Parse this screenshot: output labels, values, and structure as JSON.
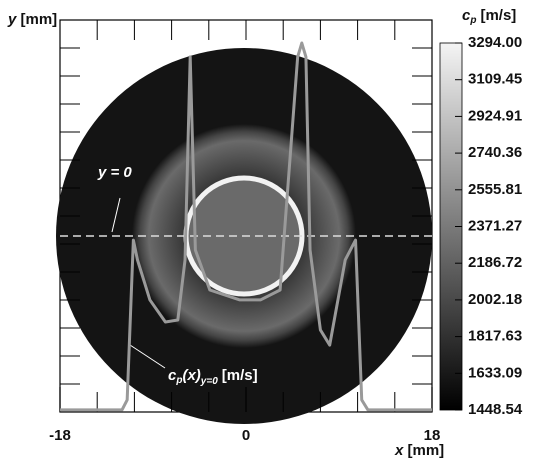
{
  "chart_data": {
    "type": "line",
    "x_label": {
      "symbol": "x",
      "unit": "[mm]"
    },
    "y_label": {
      "symbol": "y",
      "unit": "[mm]"
    },
    "xlim": [
      -18,
      18
    ],
    "xticks": [
      -18,
      0,
      18
    ],
    "ylim": [
      1448.54,
      3294
    ],
    "colorbar": {
      "label": {
        "symbol": "c",
        "subscript": "p",
        "unit": "[m/s]"
      },
      "ticks": [
        1448.54,
        1633.09,
        1817.63,
        2002.18,
        2186.72,
        2371.27,
        2555.81,
        2740.36,
        2924.91,
        3109.45,
        {
          "value": 3294,
          "label": "3294.00"
        }
      ]
    },
    "annotations": {
      "line_label": "y = 0",
      "profile_label": {
        "symbol": "c",
        "subscript": "p",
        "arg": "(x)",
        "sub2": "y=0",
        "unit": "[m/s]"
      }
    },
    "series": [
      {
        "color": "#9a9a9a",
        "x": [
          -18,
          -12,
          -11.5,
          -10.9,
          -10.5,
          -9.3,
          -7.8,
          -6.6,
          -5.9,
          -5.4,
          -4.9,
          -3.5,
          -0.6,
          1.4,
          3.3,
          5.0,
          5.4,
          5.8,
          6.2,
          7.2,
          8.1,
          9.6,
          10.6,
          11.2,
          11.8,
          18
        ],
        "values": [
          1449,
          1449,
          1499,
          2303,
          2203,
          2002,
          1891,
          1901,
          2203,
          3224,
          2253,
          2052,
          2002,
          2002,
          2052,
          3224,
          3294,
          3224,
          2253,
          1851,
          1775,
          2203,
          2303,
          1499,
          1449,
          1449
        ]
      }
    ]
  }
}
